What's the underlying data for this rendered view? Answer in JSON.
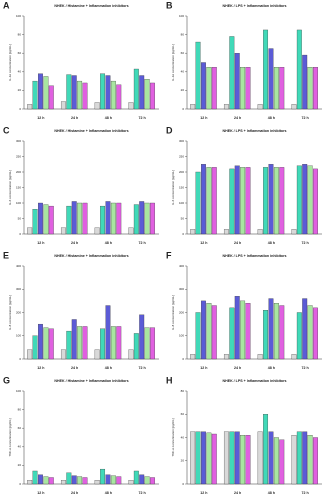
{
  "chart_data": [
    {
      "type": "bar",
      "panel": "A",
      "title": "NHEK / Histamine + Inflammation inhibitors",
      "ylabel": "IL-1α concentration [pg/mL]",
      "categories": [
        "12 h",
        "24 h",
        "48 h",
        "72 h"
      ],
      "ylim": [
        0,
        100
      ],
      "yticks": [
        0,
        20,
        40,
        60,
        80,
        100
      ],
      "series": [
        {
          "color": "#d9d9d9",
          "values": [
            5,
            8,
            7,
            7
          ]
        },
        {
          "color": "#40d9b8",
          "values": [
            30,
            37,
            38,
            43
          ]
        },
        {
          "color": "#5b5bd6",
          "values": [
            38,
            36,
            36,
            36
          ]
        },
        {
          "color": "#a8e6a0",
          "values": [
            35,
            30,
            30,
            32
          ]
        },
        {
          "color": "#e060e0",
          "values": [
            25,
            28,
            26,
            28
          ]
        }
      ]
    },
    {
      "type": "bar",
      "panel": "B",
      "title": "NHEK / LPS + Inflammation inhibitors",
      "ylabel": "IL-1α concentration [pg/mL]",
      "categories": [
        "12 h",
        "24 h",
        "48 h",
        "72 h"
      ],
      "ylim": [
        0,
        100
      ],
      "yticks": [
        0,
        20,
        40,
        60,
        80,
        100
      ],
      "series": [
        {
          "color": "#d9d9d9",
          "values": [
            5,
            5,
            5,
            5
          ]
        },
        {
          "color": "#40d9b8",
          "values": [
            72,
            78,
            85,
            85
          ]
        },
        {
          "color": "#5b5bd6",
          "values": [
            50,
            60,
            65,
            58
          ]
        },
        {
          "color": "#a8e6a0",
          "values": [
            45,
            45,
            45,
            45
          ]
        },
        {
          "color": "#e060e0",
          "values": [
            45,
            45,
            45,
            45
          ]
        }
      ]
    },
    {
      "type": "bar",
      "panel": "C",
      "title": "NHEK / Histamine + Inflammation inhibitors",
      "ylabel": "IL-6 concentration [pg/mL]",
      "categories": [
        "12 h",
        "24 h",
        "48 h",
        "72 h"
      ],
      "ylim": [
        0,
        300
      ],
      "yticks": [
        0,
        50,
        100,
        150,
        200,
        250,
        300
      ],
      "series": [
        {
          "color": "#d9d9d9",
          "values": [
            20,
            20,
            20,
            20
          ]
        },
        {
          "color": "#40d9b8",
          "values": [
            80,
            90,
            90,
            95
          ]
        },
        {
          "color": "#5b5bd6",
          "values": [
            100,
            105,
            105,
            105
          ]
        },
        {
          "color": "#a8e6a0",
          "values": [
            95,
            100,
            100,
            100
          ]
        },
        {
          "color": "#e060e0",
          "values": [
            90,
            100,
            100,
            100
          ]
        }
      ]
    },
    {
      "type": "bar",
      "panel": "D",
      "title": "NHEK / LPS + Inflammation inhibitors",
      "ylabel": "IL-6 concentration [pg/mL]",
      "categories": [
        "12 h",
        "24 h",
        "48 h",
        "72 h"
      ],
      "ylim": [
        0,
        300
      ],
      "yticks": [
        0,
        50,
        100,
        150,
        200,
        250,
        300
      ],
      "series": [
        {
          "color": "#d9d9d9",
          "values": [
            15,
            15,
            15,
            15
          ]
        },
        {
          "color": "#40d9b8",
          "values": [
            200,
            210,
            215,
            220
          ]
        },
        {
          "color": "#5b5bd6",
          "values": [
            225,
            220,
            225,
            225
          ]
        },
        {
          "color": "#a8e6a0",
          "values": [
            215,
            215,
            215,
            220
          ]
        },
        {
          "color": "#e060e0",
          "values": [
            215,
            215,
            215,
            210
          ]
        }
      ]
    },
    {
      "type": "bar",
      "panel": "E",
      "title": "NHEK / Histamine + Inflammation inhibitors",
      "ylabel": "IL-8 concentration [pg/mL]",
      "categories": [
        "12 h",
        "24 h",
        "48 h",
        "72 h"
      ],
      "ylim": [
        0,
        400
      ],
      "yticks": [
        0,
        100,
        200,
        300,
        400
      ],
      "series": [
        {
          "color": "#d9d9d9",
          "values": [
            40,
            40,
            40,
            40
          ]
        },
        {
          "color": "#40d9b8",
          "values": [
            100,
            120,
            130,
            110
          ]
        },
        {
          "color": "#5b5bd6",
          "values": [
            150,
            170,
            230,
            190
          ]
        },
        {
          "color": "#a8e6a0",
          "values": [
            135,
            140,
            140,
            135
          ]
        },
        {
          "color": "#e060e0",
          "values": [
            130,
            140,
            140,
            135
          ]
        }
      ]
    },
    {
      "type": "bar",
      "panel": "F",
      "title": "NHEK / LPS + Inflammation inhibitors",
      "ylabel": "IL-8 concentration [pg/mL]",
      "categories": [
        "12 h",
        "24 h",
        "48 h",
        "72 h"
      ],
      "ylim": [
        0,
        400
      ],
      "yticks": [
        0,
        100,
        200,
        300,
        400
      ],
      "series": [
        {
          "color": "#d9d9d9",
          "values": [
            20,
            20,
            20,
            20
          ]
        },
        {
          "color": "#40d9b8",
          "values": [
            200,
            220,
            210,
            200
          ]
        },
        {
          "color": "#5b5bd6",
          "values": [
            250,
            270,
            260,
            260
          ]
        },
        {
          "color": "#a8e6a0",
          "values": [
            240,
            250,
            240,
            230
          ]
        },
        {
          "color": "#e060e0",
          "values": [
            230,
            240,
            230,
            220
          ]
        }
      ]
    },
    {
      "type": "bar",
      "panel": "G",
      "title": "NHEK / Histamine + Inflammation inhibitors",
      "ylabel": "TNF-α concentration [pg/mL]",
      "categories": [
        "12 h",
        "24 h",
        "48 h",
        "72 h"
      ],
      "ylim": [
        0,
        100
      ],
      "yticks": [
        0,
        20,
        40,
        60,
        80,
        100
      ],
      "series": [
        {
          "color": "#d9d9d9",
          "values": [
            4,
            4,
            4,
            4
          ]
        },
        {
          "color": "#40d9b8",
          "values": [
            14,
            12,
            16,
            14
          ]
        },
        {
          "color": "#5b5bd6",
          "values": [
            10,
            9,
            10,
            10
          ]
        },
        {
          "color": "#a8e6a0",
          "values": [
            8,
            8,
            9,
            8
          ]
        },
        {
          "color": "#e060e0",
          "values": [
            7,
            7,
            8,
            7
          ]
        }
      ]
    },
    {
      "type": "bar",
      "panel": "H",
      "title": "NHEK / LPS + Inflammation inhibitors",
      "ylabel": "TNF-α concentration [pg/mL]",
      "categories": [
        "12 h",
        "24 h",
        "48 h",
        "72 h"
      ],
      "ylim": [
        0,
        80
      ],
      "yticks": [
        0,
        20,
        40,
        60,
        80
      ],
      "series": [
        {
          "color": "#d9d9d9",
          "values": [
            45,
            45,
            45,
            42
          ]
        },
        {
          "color": "#40d9b8",
          "values": [
            45,
            45,
            60,
            45
          ]
        },
        {
          "color": "#5b5bd6",
          "values": [
            45,
            45,
            45,
            45
          ]
        },
        {
          "color": "#a8e6a0",
          "values": [
            44,
            42,
            40,
            42
          ]
        },
        {
          "color": "#e060e0",
          "values": [
            43,
            42,
            38,
            40
          ]
        }
      ]
    }
  ]
}
